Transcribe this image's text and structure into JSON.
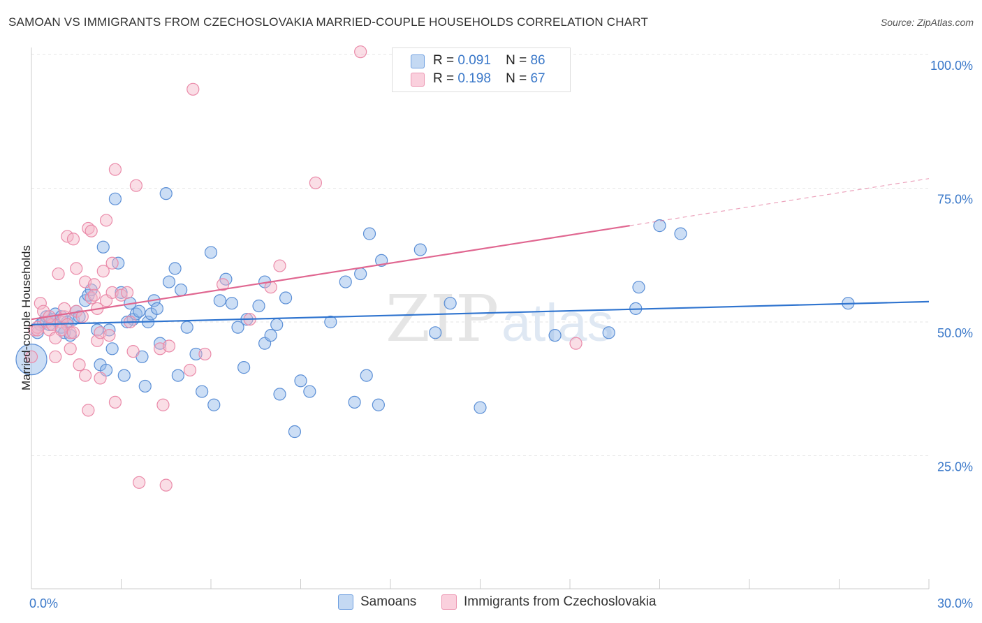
{
  "title": "SAMOAN VS IMMIGRANTS FROM CZECHOSLOVAKIA MARRIED-COUPLE HOUSEHOLDS CORRELATION CHART",
  "source": "Source: ZipAtlas.com",
  "watermark": {
    "zip": "ZIP",
    "atlas": "atlas"
  },
  "legend": {
    "r_label": "R =",
    "n_label": "N =",
    "series1": {
      "r": "0.091",
      "n": "86"
    },
    "series2": {
      "r": "0.198",
      "n": "67"
    }
  },
  "chart_data": {
    "type": "scatter",
    "title": "SAMOAN VS IMMIGRANTS FROM CZECHOSLOVAKIA MARRIED-COUPLE HOUSEHOLDS CORRELATION CHART",
    "xlabel": "",
    "ylabel": "Married-couple Households",
    "xlim": [
      0,
      30
    ],
    "ylim": [
      0,
      105
    ],
    "x_tick_labels": [
      "0.0%",
      "30.0%"
    ],
    "y_tick_labels": [
      "25.0%",
      "50.0%",
      "75.0%",
      "100.0%"
    ],
    "y_ticks": [
      25,
      50,
      75,
      100
    ],
    "grid": true,
    "legend_position": "top-center",
    "series": [
      {
        "name": "Samoans",
        "color": "#8fb5e8",
        "edge": "#5b8fd6",
        "line_color": "#2f74cf",
        "trend": {
          "x": [
            0,
            30
          ],
          "y": [
            49.5,
            53.8
          ]
        },
        "points": [
          [
            0.0,
            43.0
          ],
          [
            0.2,
            48.0
          ],
          [
            0.3,
            49.5
          ],
          [
            0.4,
            50.0
          ],
          [
            0.5,
            51.0
          ],
          [
            0.6,
            49.5
          ],
          [
            0.7,
            50.5
          ],
          [
            0.8,
            51.5
          ],
          [
            1.0,
            49.0
          ],
          [
            1.0,
            51.0
          ],
          [
            1.1,
            48.0
          ],
          [
            1.2,
            50.0
          ],
          [
            1.4,
            50.5
          ],
          [
            1.5,
            52.0
          ],
          [
            1.6,
            51.0
          ],
          [
            1.8,
            54.0
          ],
          [
            1.9,
            55.0
          ],
          [
            2.0,
            56.0
          ],
          [
            2.2,
            48.5
          ],
          [
            2.3,
            42.0
          ],
          [
            2.4,
            64.0
          ],
          [
            2.5,
            41.0
          ],
          [
            2.6,
            48.5
          ],
          [
            2.7,
            45.0
          ],
          [
            2.8,
            73.0
          ],
          [
            2.9,
            61.0
          ],
          [
            3.0,
            55.5
          ],
          [
            3.1,
            40.0
          ],
          [
            3.3,
            53.5
          ],
          [
            3.4,
            50.5
          ],
          [
            3.5,
            51.5
          ],
          [
            3.6,
            52.0
          ],
          [
            3.7,
            43.5
          ],
          [
            3.8,
            38.0
          ],
          [
            3.9,
            50.0
          ],
          [
            4.0,
            51.5
          ],
          [
            4.1,
            54.0
          ],
          [
            4.2,
            52.5
          ],
          [
            4.3,
            46.0
          ],
          [
            4.5,
            74.0
          ],
          [
            4.6,
            57.5
          ],
          [
            4.8,
            60.0
          ],
          [
            4.9,
            40.0
          ],
          [
            5.0,
            56.0
          ],
          [
            5.2,
            49.0
          ],
          [
            5.5,
            44.0
          ],
          [
            5.7,
            37.0
          ],
          [
            6.0,
            63.0
          ],
          [
            6.1,
            34.5
          ],
          [
            6.3,
            54.0
          ],
          [
            6.5,
            58.0
          ],
          [
            6.7,
            53.5
          ],
          [
            6.9,
            49.0
          ],
          [
            7.1,
            41.5
          ],
          [
            7.2,
            50.5
          ],
          [
            7.6,
            53.0
          ],
          [
            7.8,
            57.5
          ],
          [
            7.8,
            46.0
          ],
          [
            8.0,
            47.5
          ],
          [
            8.2,
            49.5
          ],
          [
            8.3,
            36.5
          ],
          [
            8.5,
            54.5
          ],
          [
            8.8,
            29.5
          ],
          [
            9.0,
            39.0
          ],
          [
            9.3,
            37.0
          ],
          [
            10.0,
            50.0
          ],
          [
            10.5,
            57.5
          ],
          [
            10.8,
            35.0
          ],
          [
            11.0,
            59.0
          ],
          [
            11.2,
            40.0
          ],
          [
            11.3,
            66.5
          ],
          [
            11.6,
            34.5
          ],
          [
            11.7,
            61.5
          ],
          [
            13.0,
            63.5
          ],
          [
            13.5,
            48.0
          ],
          [
            14.0,
            53.5
          ],
          [
            15.0,
            34.0
          ],
          [
            17.5,
            47.5
          ],
          [
            19.3,
            48.0
          ],
          [
            20.2,
            52.5
          ],
          [
            20.3,
            56.5
          ],
          [
            21.0,
            68.0
          ],
          [
            21.7,
            66.5
          ],
          [
            27.3,
            53.5
          ],
          [
            1.3,
            47.5
          ],
          [
            3.2,
            50.0
          ]
        ]
      },
      {
        "name": "Immigrants from Czechoslovakia",
        "color": "#f5b5c8",
        "edge": "#ea8aa9",
        "line_color": "#e06690",
        "trend": {
          "x": [
            0,
            20
          ],
          "y": [
            50.5,
            68.0
          ]
        },
        "trend_dashed": {
          "x": [
            20,
            30
          ],
          "y": [
            68.0,
            76.8
          ]
        },
        "points": [
          [
            0.0,
            43.5
          ],
          [
            0.1,
            48.5
          ],
          [
            0.2,
            49.0
          ],
          [
            0.3,
            53.5
          ],
          [
            0.4,
            52.0
          ],
          [
            0.5,
            50.0
          ],
          [
            0.6,
            48.5
          ],
          [
            0.7,
            49.5
          ],
          [
            0.8,
            47.0
          ],
          [
            0.8,
            43.5
          ],
          [
            0.9,
            59.0
          ],
          [
            1.0,
            50.0
          ],
          [
            1.1,
            51.0
          ],
          [
            1.1,
            52.5
          ],
          [
            1.2,
            49.5
          ],
          [
            1.2,
            66.0
          ],
          [
            1.3,
            48.0
          ],
          [
            1.3,
            45.0
          ],
          [
            1.4,
            65.5
          ],
          [
            1.5,
            52.0
          ],
          [
            1.5,
            60.0
          ],
          [
            1.6,
            42.0
          ],
          [
            1.7,
            51.0
          ],
          [
            1.8,
            57.5
          ],
          [
            1.8,
            40.0
          ],
          [
            1.9,
            67.5
          ],
          [
            2.0,
            67.0
          ],
          [
            2.0,
            54.5
          ],
          [
            2.1,
            57.0
          ],
          [
            2.2,
            46.5
          ],
          [
            2.2,
            52.5
          ],
          [
            2.3,
            48.0
          ],
          [
            2.3,
            39.5
          ],
          [
            2.4,
            59.5
          ],
          [
            2.5,
            69.0
          ],
          [
            2.5,
            54.0
          ],
          [
            2.6,
            47.5
          ],
          [
            2.7,
            61.0
          ],
          [
            2.7,
            55.5
          ],
          [
            2.8,
            78.5
          ],
          [
            2.8,
            35.0
          ],
          [
            3.0,
            55.0
          ],
          [
            3.2,
            55.5
          ],
          [
            3.3,
            50.0
          ],
          [
            3.4,
            44.5
          ],
          [
            3.5,
            75.5
          ],
          [
            3.6,
            20.0
          ],
          [
            4.3,
            45.0
          ],
          [
            4.4,
            34.5
          ],
          [
            4.5,
            19.5
          ],
          [
            4.6,
            45.5
          ],
          [
            5.3,
            41.0
          ],
          [
            5.4,
            93.5
          ],
          [
            5.8,
            44.0
          ],
          [
            6.4,
            57.0
          ],
          [
            7.3,
            50.5
          ],
          [
            8.0,
            56.5
          ],
          [
            8.3,
            60.5
          ],
          [
            9.5,
            76.0
          ],
          [
            11.0,
            100.5
          ],
          [
            18.2,
            46.0
          ],
          [
            1.9,
            33.5
          ],
          [
            0.2,
            48.5
          ],
          [
            1.0,
            48.5
          ],
          [
            0.6,
            51.0
          ],
          [
            2.1,
            55.0
          ],
          [
            1.4,
            48.0
          ]
        ]
      }
    ]
  }
}
